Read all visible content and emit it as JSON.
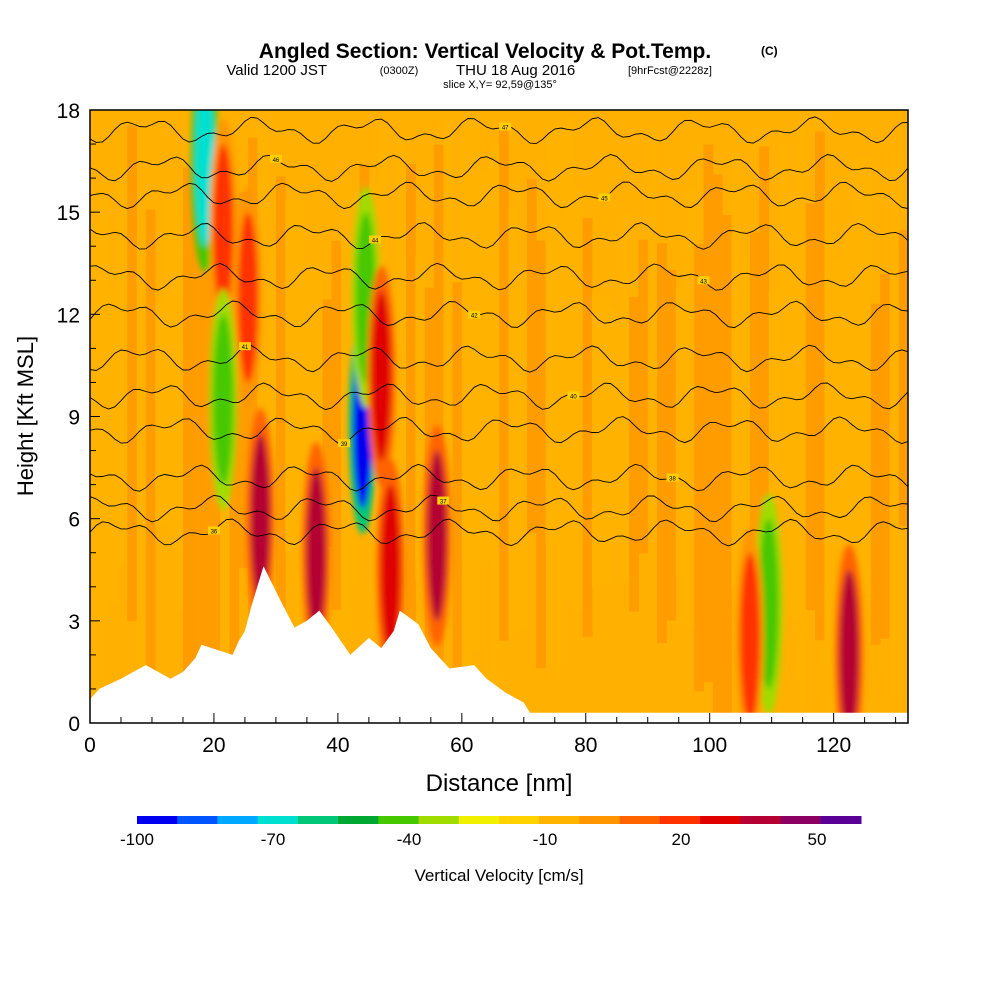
{
  "title": {
    "main": "Angled Section: Vertical Velocity & Pot.Temp.",
    "units": "(C)",
    "line2": "Valid 1200 JST",
    "line2_utc": "(0300Z)",
    "line2_date": "THU 18 Aug 2016",
    "line2_fcst": "[9hrFcst@2228z]",
    "line3": "slice X,Y= 92,59@135°"
  },
  "chart_data": {
    "type": "heatmap",
    "xlabel": "Distance [nm]",
    "ylabel": "Height [Kft MSL]",
    "xlim": [
      0,
      132
    ],
    "ylim": [
      0,
      18
    ],
    "xticks": [
      0,
      20,
      40,
      60,
      80,
      100,
      120
    ],
    "yticks": [
      0,
      3,
      6,
      9,
      12,
      15,
      18
    ],
    "field": "Vertical Velocity [cm/s]",
    "background_range": [
      0,
      20
    ],
    "updraft_cores": [
      {
        "x": 18.5,
        "y": 16.5,
        "w": -70
      },
      {
        "x": 21.5,
        "y": 14.5,
        "w": 30
      },
      {
        "x": 25.5,
        "y": 12.5,
        "w": 30
      },
      {
        "x": 21.5,
        "y": 9.5,
        "w": -40
      },
      {
        "x": 27.5,
        "y": 6.0,
        "w": 50
      },
      {
        "x": 36.5,
        "y": 5.0,
        "w": 50
      },
      {
        "x": 44.0,
        "y": 8.8,
        "w": -100
      },
      {
        "x": 44.5,
        "y": 12.5,
        "w": -40
      },
      {
        "x": 47.0,
        "y": 10.2,
        "w": 40
      },
      {
        "x": 48.5,
        "y": 4.5,
        "w": 40
      },
      {
        "x": 56.0,
        "y": 5.5,
        "w": 50
      },
      {
        "x": 122.5,
        "y": 2.0,
        "w": 50
      },
      {
        "x": 109.5,
        "y": 3.5,
        "w": -40
      },
      {
        "x": 106.5,
        "y": 2.5,
        "w": 30
      }
    ],
    "terrain": [
      [
        0,
        0.7
      ],
      [
        1.5,
        1.0
      ],
      [
        5,
        1.3
      ],
      [
        9,
        1.7
      ],
      [
        13,
        1.3
      ],
      [
        15,
        1.5
      ],
      [
        17,
        1.9
      ],
      [
        18,
        2.3
      ],
      [
        23,
        2.0
      ],
      [
        24,
        2.4
      ],
      [
        25,
        2.7
      ],
      [
        26,
        3.4
      ],
      [
        28,
        4.6
      ],
      [
        31,
        3.5
      ],
      [
        33,
        2.8
      ],
      [
        35,
        3.0
      ],
      [
        37,
        3.3
      ],
      [
        39,
        2.8
      ],
      [
        42,
        2.0
      ],
      [
        45,
        2.5
      ],
      [
        47,
        2.2
      ],
      [
        49,
        2.7
      ],
      [
        50,
        3.3
      ],
      [
        53,
        2.9
      ],
      [
        55,
        2.2
      ],
      [
        58,
        1.6
      ],
      [
        62,
        1.7
      ],
      [
        64,
        1.3
      ],
      [
        67,
        0.9
      ],
      [
        70,
        0.6
      ],
      [
        71,
        0.3
      ],
      [
        132,
        0.3
      ]
    ],
    "theta_contours": [
      {
        "label": "36",
        "level": 5.6
      },
      {
        "label": "37",
        "level": 6.3
      },
      {
        "label": "38",
        "level": 7.2
      },
      {
        "label": "39",
        "level": 8.6
      },
      {
        "label": "40",
        "level": 9.6
      },
      {
        "label": "41",
        "level": 10.7
      },
      {
        "label": "42",
        "level": 12.0
      },
      {
        "label": "43",
        "level": 13.1
      },
      {
        "label": "44",
        "level": 14.3
      },
      {
        "label": "45",
        "level": 15.5
      },
      {
        "label": "46",
        "level": 16.3
      },
      {
        "label": "47",
        "level": 17.4
      }
    ],
    "colorbar": {
      "label": "Vertical Velocity [cm/s]",
      "tick_labels": [
        "-100",
        "-70",
        "-40",
        "-10",
        "20",
        "50"
      ],
      "colors": [
        "#0000f0",
        "#0055ff",
        "#00a8ff",
        "#00e0d0",
        "#00c878",
        "#00a832",
        "#46c800",
        "#a0dc00",
        "#f0f000",
        "#ffd200",
        "#ffb400",
        "#ff9600",
        "#ff6400",
        "#ff3200",
        "#e00000",
        "#b40032",
        "#8c0064",
        "#5a0096"
      ]
    }
  }
}
